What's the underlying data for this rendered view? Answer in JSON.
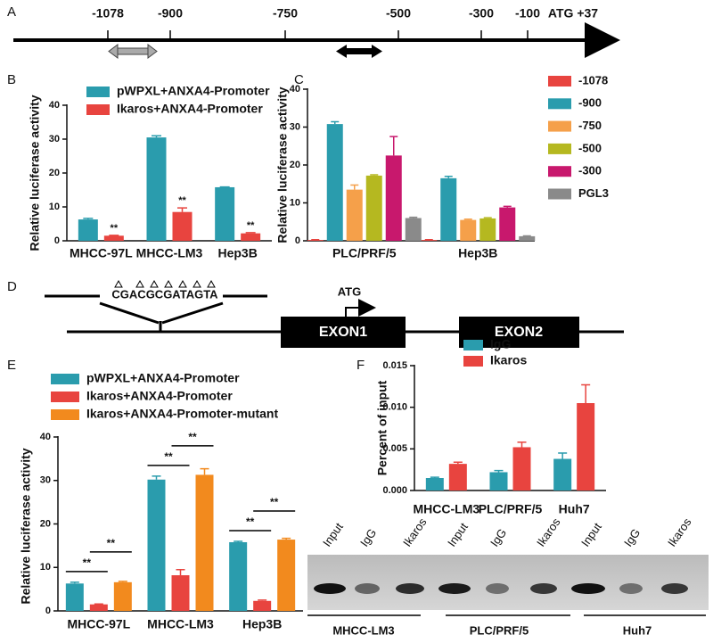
{
  "panel_labels": [
    "A",
    "B",
    "C",
    "D",
    "E",
    "F"
  ],
  "promoter_map": {
    "positions": [
      "-1078",
      "-900",
      "-750",
      "-500",
      "-300",
      "-100",
      "ATG +37"
    ]
  },
  "gene_diagram": {
    "sequence": "CGACGCGATAGTA",
    "start": "ATG",
    "exons": [
      "EXON1",
      "EXON2"
    ]
  },
  "gel": {
    "lanes": [
      "Input",
      "IgG",
      "Ikaros",
      "Input",
      "IgG",
      "Ikaros",
      "Input",
      "IgG",
      "Ikaros"
    ],
    "groups": [
      "MHCC-LM3",
      "PLC/PRF/5",
      "Huh7"
    ]
  },
  "chart_data": [
    {
      "type": "bar",
      "ylabel": "Relative luciferase activity",
      "categories": [
        "MHCC-97L",
        "MHCC-LM3",
        "Hep3B"
      ],
      "series": [
        {
          "name": "pWPXL+ANXA4-Promoter",
          "color": "#2a9cad",
          "values": [
            6.3,
            30.5,
            15.8
          ],
          "errors": [
            0.3,
            0.5,
            0.1
          ]
        },
        {
          "name": "Ikaros+ANXA4-Promoter",
          "color": "#e8443f",
          "values": [
            1.5,
            8.5,
            2.2
          ],
          "errors": [
            0.1,
            1.2,
            0.2
          ]
        }
      ],
      "ylim": [
        0,
        40
      ],
      "yticks": [
        0,
        10,
        20,
        30,
        40
      ],
      "significance": "**"
    },
    {
      "type": "bar",
      "ylabel": "Relative luciferase activity",
      "categories": [
        "PLC/PRF/5",
        "Hep3B"
      ],
      "series": [
        {
          "name": "-1078",
          "color": "#e8443f",
          "values": [
            0.2,
            0.2
          ],
          "errors": [
            0.1,
            0.1
          ]
        },
        {
          "name": "-900",
          "color": "#2a9cad",
          "values": [
            30.8,
            16.5
          ],
          "errors": [
            0.6,
            0.5
          ]
        },
        {
          "name": "-750",
          "color": "#f5a04a",
          "values": [
            13.5,
            5.5
          ],
          "errors": [
            1.2,
            0.2
          ]
        },
        {
          "name": "-500",
          "color": "#b5b820",
          "values": [
            17.2,
            5.9
          ],
          "errors": [
            0.2,
            0.2
          ]
        },
        {
          "name": "-300",
          "color": "#c8186d",
          "values": [
            22.5,
            8.8
          ],
          "errors": [
            5,
            0.3
          ]
        },
        {
          "name": "PGL3",
          "color": "#8a8a8a",
          "values": [
            6,
            1.2
          ],
          "errors": [
            0.2,
            0.1
          ]
        }
      ],
      "ylim": [
        0,
        40
      ],
      "yticks": [
        0,
        10,
        20,
        30,
        40
      ]
    },
    {
      "type": "bar",
      "ylabel": "Relative luciferase activity",
      "categories": [
        "MHCC-97L",
        "MHCC-LM3",
        "Hep3B"
      ],
      "series": [
        {
          "name": "pWPXL+ANXA4-Promoter",
          "color": "#2a9cad",
          "values": [
            6.3,
            30.2,
            15.8
          ],
          "errors": [
            0.3,
            0.8,
            0.2
          ]
        },
        {
          "name": "Ikaros+ANXA4-Promoter",
          "color": "#e8443f",
          "values": [
            1.5,
            8.2,
            2.3
          ],
          "errors": [
            0.1,
            1.3,
            0.2
          ]
        },
        {
          "name": "Ikaros+ANXA4-Promoter-mutant",
          "color": "#f28a1e",
          "values": [
            6.6,
            31.3,
            16.4
          ],
          "errors": [
            0.2,
            1.4,
            0.3
          ]
        }
      ],
      "ylim": [
        0,
        40
      ],
      "yticks": [
        0,
        10,
        20,
        30,
        40
      ],
      "significance": "**"
    },
    {
      "type": "bar",
      "ylabel": "Percent of input",
      "categories": [
        "MHCC-LM3",
        "PLC/PRF/5",
        "Huh7"
      ],
      "series": [
        {
          "name": "IgG",
          "color": "#2a9cad",
          "values": [
            0.0015,
            0.0022,
            0.0038
          ],
          "errors": [
            0.0001,
            0.0002,
            0.0007
          ]
        },
        {
          "name": "Ikaros",
          "color": "#e8443f",
          "values": [
            0.0032,
            0.0052,
            0.0105
          ],
          "errors": [
            0.0002,
            0.0006,
            0.0022
          ]
        }
      ],
      "ylim": [
        0,
        0.015
      ],
      "yticks": [
        {
          "value": 0,
          "label": "0.000"
        },
        {
          "value": 0.005,
          "label": "0.005"
        },
        {
          "value": 0.01,
          "label": "0.010"
        },
        {
          "value": 0.015,
          "label": "0.015"
        }
      ]
    }
  ]
}
